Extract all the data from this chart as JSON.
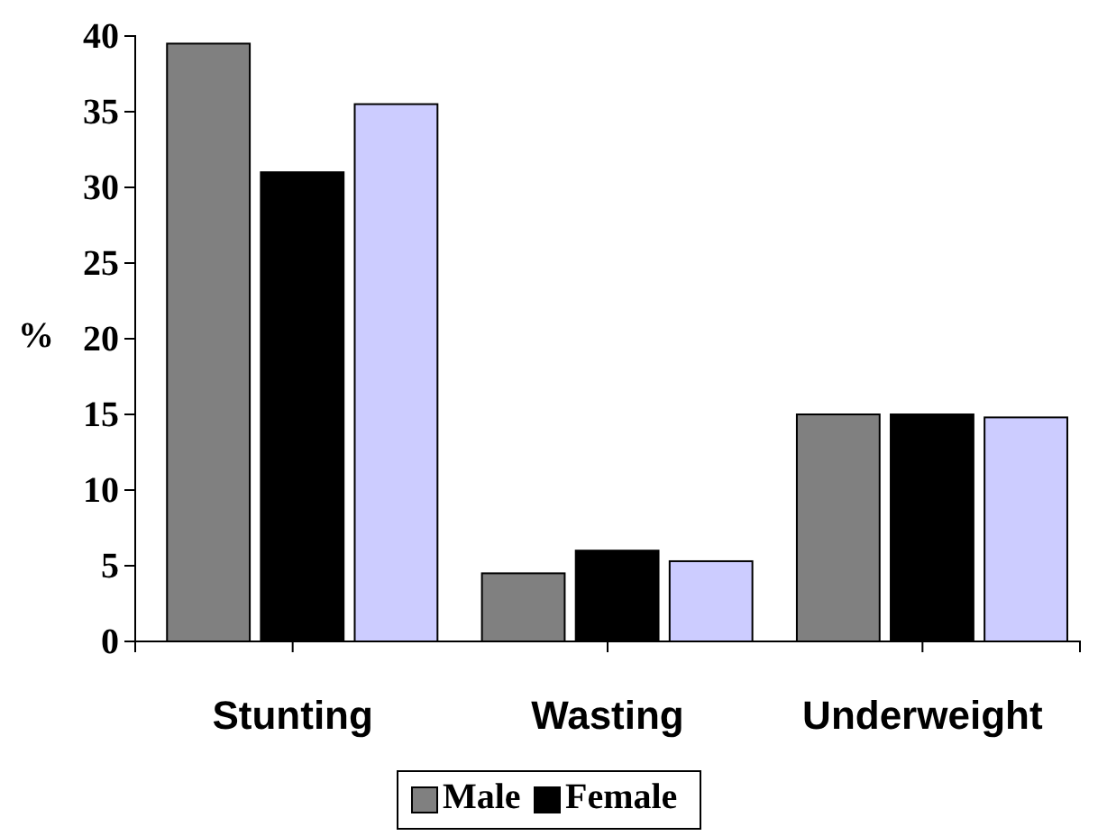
{
  "chart_data": {
    "type": "bar",
    "ylabel": "%",
    "categories": [
      "Stunting",
      "Wasting",
      "Underweight"
    ],
    "series": [
      {
        "name": "Male",
        "color": "#808080",
        "values": [
          39.5,
          4.5,
          15
        ]
      },
      {
        "name": "Female",
        "color": "#000000",
        "values": [
          31,
          6,
          15
        ]
      },
      {
        "color": "#ccccff",
        "values": [
          35.5,
          5.3,
          14.8
        ]
      }
    ],
    "ylim": [
      0,
      40
    ],
    "yticks": [
      0,
      5,
      10,
      15,
      20,
      25,
      30,
      35,
      40
    ],
    "grid": false,
    "legend": "bottom"
  }
}
